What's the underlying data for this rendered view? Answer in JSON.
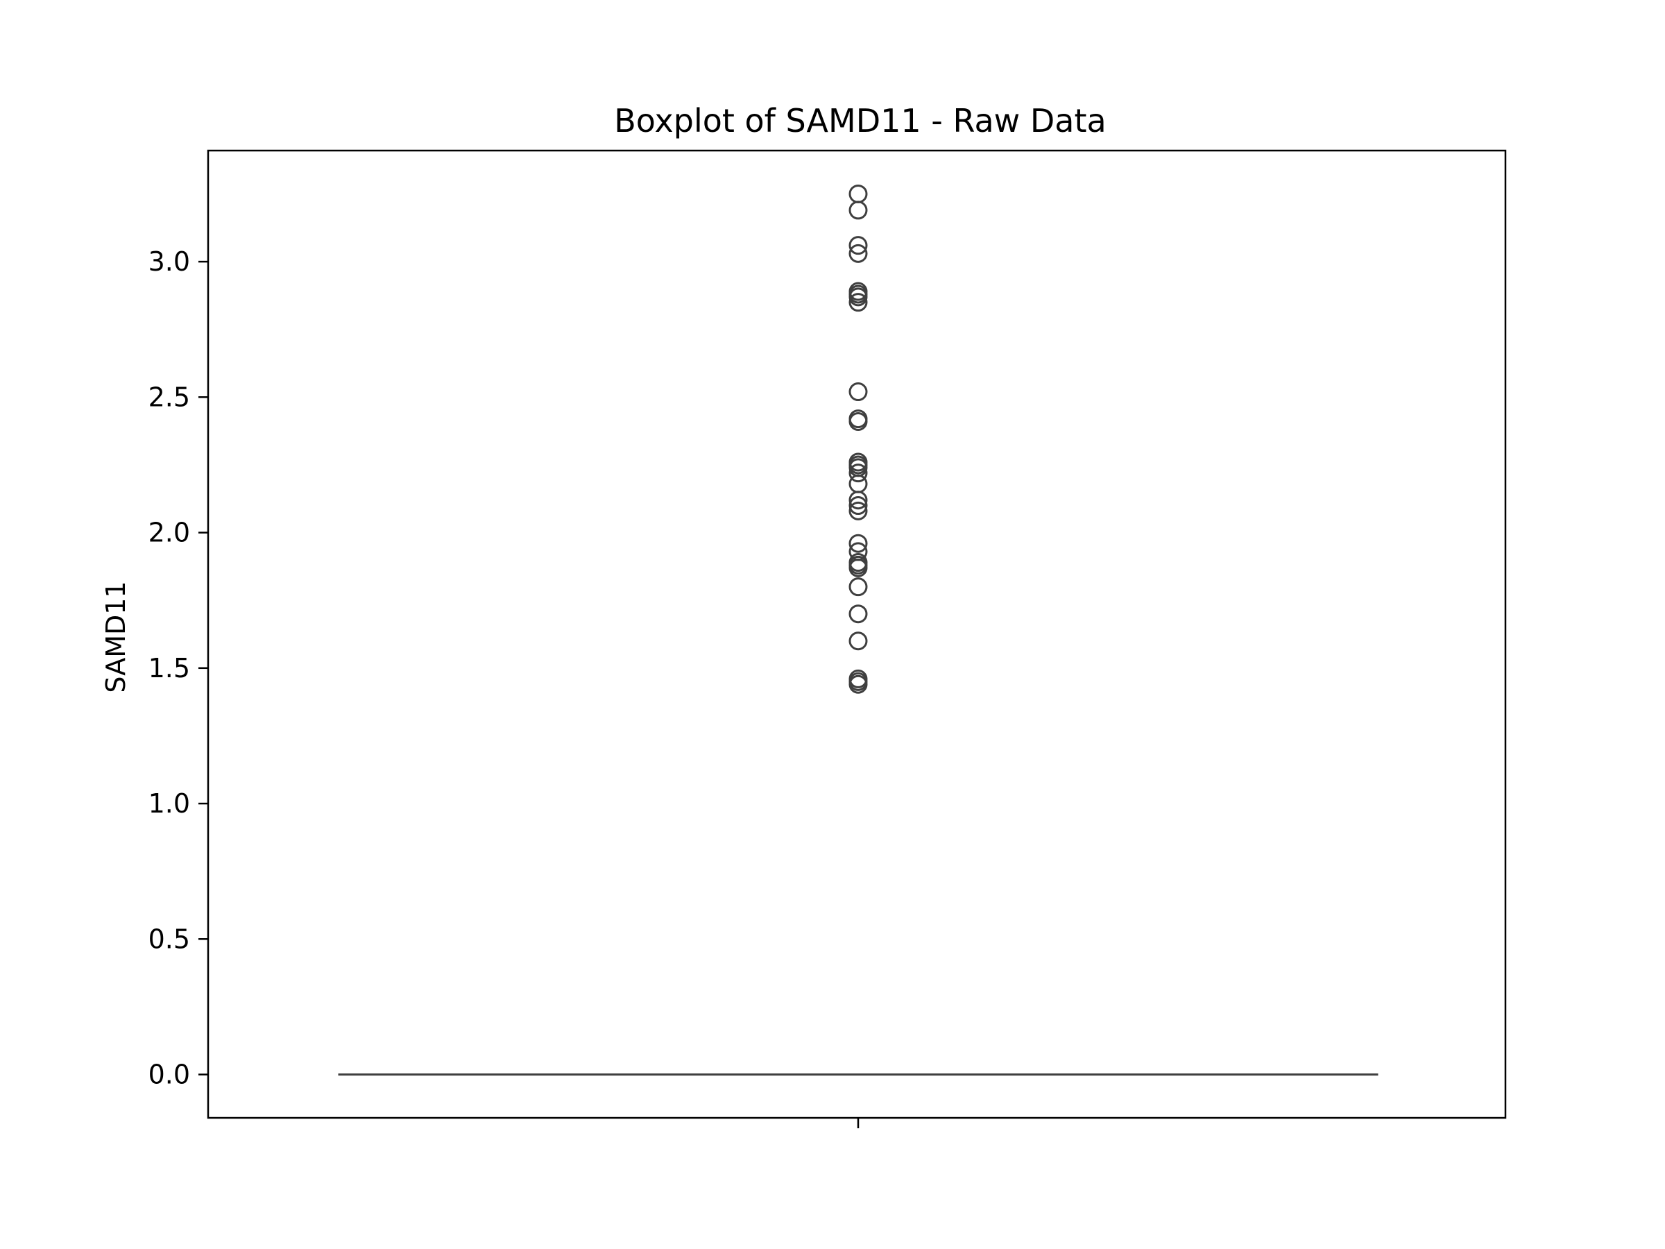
{
  "chart_data": {
    "type": "box",
    "title": "Boxplot of SAMD11 - Raw Data",
    "xlabel": "",
    "ylabel": "SAMD11",
    "ylim": [
      -0.16,
      3.41
    ],
    "yticks": [
      0.0,
      0.5,
      1.0,
      1.5,
      2.0,
      2.5,
      3.0
    ],
    "ytick_labels": [
      "0.0",
      "0.5",
      "1.0",
      "1.5",
      "2.0",
      "2.5",
      "3.0"
    ],
    "grid": false,
    "box": {
      "q1": 0.0,
      "median": 0.0,
      "q3": 0.0,
      "whisker_low": 0.0,
      "whisker_high": 0.0
    },
    "outliers": [
      3.25,
      3.19,
      3.06,
      3.03,
      2.89,
      2.88,
      2.87,
      2.85,
      2.52,
      2.42,
      2.41,
      2.26,
      2.25,
      2.24,
      2.22,
      2.18,
      2.12,
      2.1,
      2.08,
      1.96,
      1.93,
      1.89,
      1.88,
      1.87,
      1.8,
      1.7,
      1.6,
      1.46,
      1.45,
      1.44
    ],
    "colors": {
      "box_line": "#3f3f3f",
      "outlier_edge": "#3f3f3f",
      "axes": "#000000"
    }
  }
}
